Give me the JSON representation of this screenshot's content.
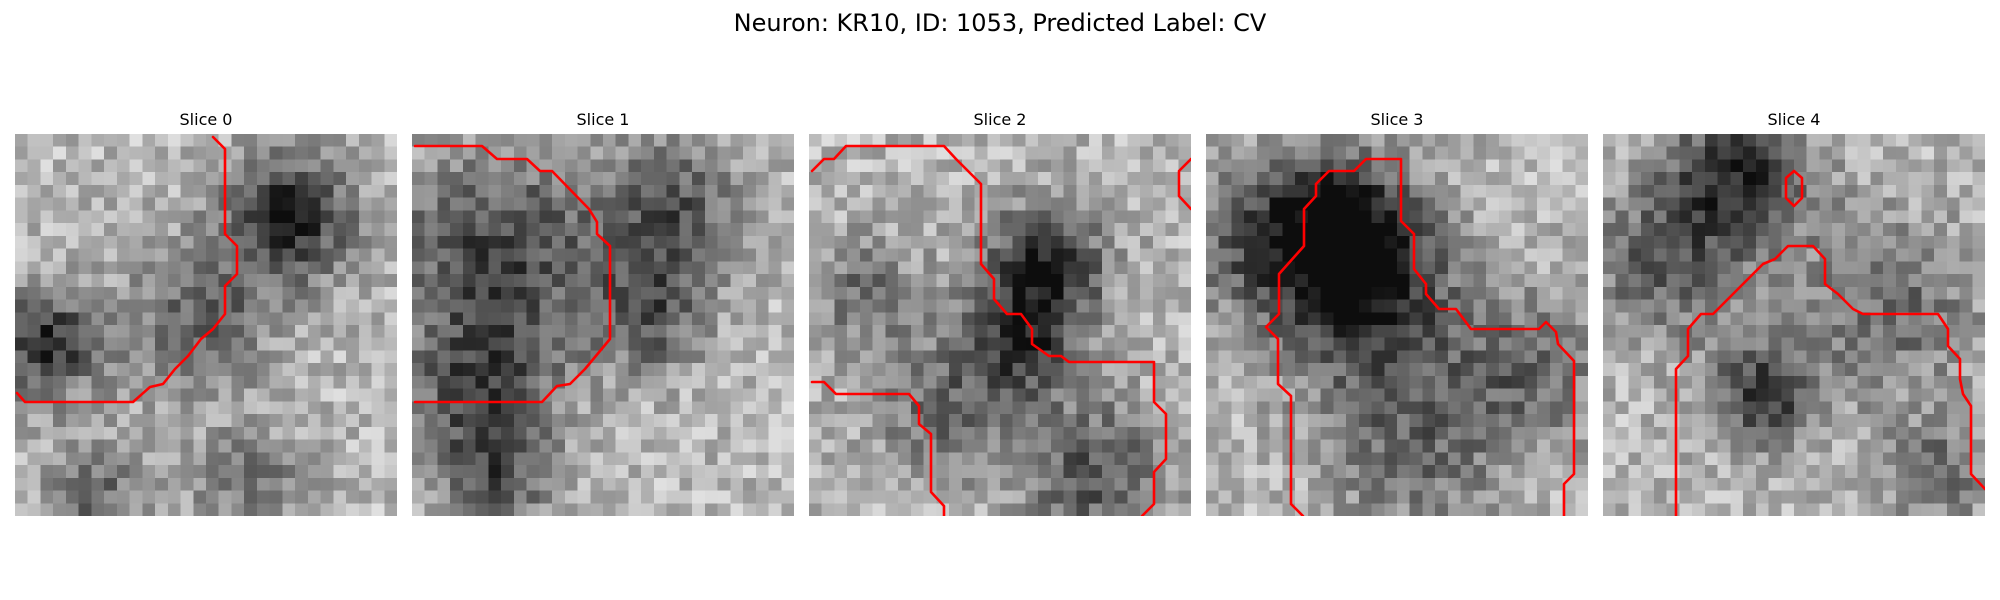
{
  "figure": {
    "title": "Neuron: KR10, ID: 1053, Predicted Label: CV"
  },
  "colors": {
    "contour": "#ff0000",
    "colormap": "gray"
  },
  "panels": [
    {
      "title": "Slice 0"
    },
    {
      "title": "Slice 1"
    },
    {
      "title": "Slice 2"
    },
    {
      "title": "Slice 3"
    },
    {
      "title": "Slice 4"
    }
  ]
}
